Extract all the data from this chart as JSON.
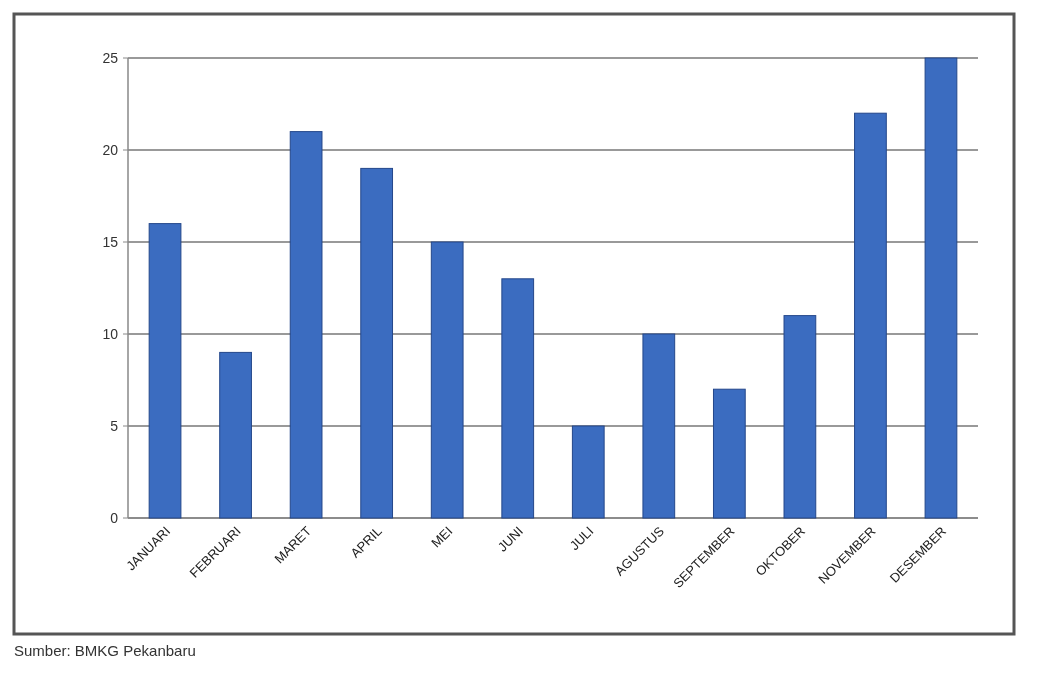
{
  "chart_data": {
    "type": "bar",
    "categories": [
      "JANUARI",
      "FEBRUARI",
      "MARET",
      "APRIL",
      "MEI",
      "JUNI",
      "JULI",
      "AGUSTUS",
      "SEPTEMBER",
      "OKTOBER",
      "NOVEMBER",
      "DESEMBER"
    ],
    "values": [
      16,
      9,
      21,
      19,
      15,
      13,
      5,
      10,
      7,
      11,
      22,
      25
    ],
    "color": "#3b6cc0",
    "ylim": [
      0,
      25
    ],
    "yticks": [
      0,
      5,
      10,
      15,
      20,
      25
    ],
    "grid": "y",
    "annotations": [
      "Sumber: BMKG Pekanbaru"
    ]
  }
}
